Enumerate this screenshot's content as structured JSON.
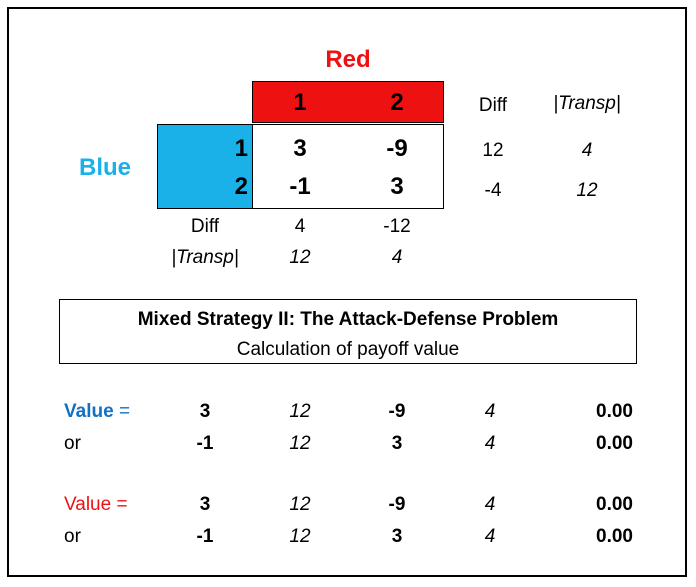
{
  "game": {
    "red_label": "Red",
    "blue_label": "Blue",
    "red_strategies": [
      "1",
      "2"
    ],
    "blue_strategies": [
      "1",
      "2"
    ],
    "payoffs": [
      [
        "3",
        "-9"
      ],
      [
        "-1",
        "3"
      ]
    ],
    "row_diff_header": "Diff",
    "row_transp_header": "|Transp|",
    "row_diff": [
      "12",
      "-4"
    ],
    "row_transp": [
      "4",
      "12"
    ],
    "col_diff_label": "Diff",
    "col_transp_label": "|Transp|",
    "col_diff": [
      "4",
      "-12"
    ],
    "col_transp": [
      "12",
      "4"
    ]
  },
  "title_box": {
    "title": "Mixed Strategy II: The Attack-Defense Problem",
    "subtitle": "Calculation of payoff value"
  },
  "calc": {
    "value_label": "Value",
    "equals": "=",
    "or_label": "or",
    "blue_rows": [
      {
        "a": "3",
        "wa": "12",
        "b": "-9",
        "wb": "4",
        "result": "0.00"
      },
      {
        "a": "-1",
        "wa": "12",
        "b": "3",
        "wb": "4",
        "result": "0.00"
      }
    ],
    "red_rows": [
      {
        "a": "3",
        "wa": "12",
        "b": "-9",
        "wb": "4",
        "result": "0.00"
      },
      {
        "a": "-1",
        "wa": "12",
        "b": "3",
        "wb": "4",
        "result": "0.00"
      }
    ]
  },
  "colors": {
    "red": "#ee1111",
    "blue_fill": "#1ab0e8",
    "blue_text": "#1172c4"
  }
}
